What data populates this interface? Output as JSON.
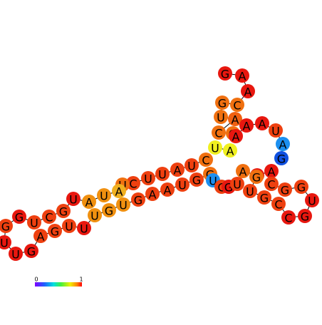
{
  "nodes": [
    {
      "label": "G",
      "color": "#e8170f"
    },
    {
      "label": "A",
      "color": "#e8170f"
    },
    {
      "label": "A",
      "color": "#e8170f"
    },
    {
      "label": "C",
      "color": "#f07010"
    },
    {
      "label": "G",
      "color": "#f07010"
    },
    {
      "label": "U",
      "color": "#f07010"
    },
    {
      "label": "A",
      "color": "#f06010"
    },
    {
      "label": "C",
      "color": "#f07010"
    },
    {
      "label": "G",
      "color": "#f07010"
    },
    {
      "label": "A",
      "color": "#e8170f"
    },
    {
      "label": "A",
      "color": "#e8170f"
    },
    {
      "label": "A",
      "color": "#e8170f"
    },
    {
      "label": "U",
      "color": "#ee4010"
    },
    {
      "label": "A",
      "color": "#1b8ff0"
    },
    {
      "label": "G",
      "color": "#1050e0"
    },
    {
      "label": "U",
      "color": "#f0f020"
    },
    {
      "label": "A",
      "color": "#f0f020"
    },
    {
      "label": "C",
      "color": "#f07010"
    },
    {
      "label": "U",
      "color": "#ee4010"
    },
    {
      "label": "A",
      "color": "#ee4010"
    },
    {
      "label": "U",
      "color": "#ee4010"
    },
    {
      "label": "U",
      "color": "#ee4010"
    },
    {
      "label": "C",
      "color": "#ee4010"
    },
    {
      "label": "U",
      "color": "#f07010"
    },
    {
      "label": "A",
      "color": "#f0b020"
    },
    {
      "label": "U",
      "color": "#f09010"
    },
    {
      "label": "A",
      "color": "#f09010"
    },
    {
      "label": "U",
      "color": "#e8170f"
    },
    {
      "label": "G",
      "color": "#ee4010"
    },
    {
      "label": "C",
      "color": "#ee4010"
    },
    {
      "label": "U",
      "color": "#ee4010"
    },
    {
      "label": "G",
      "color": "#e8170f"
    },
    {
      "label": "G",
      "color": "#ee4010"
    },
    {
      "label": "U",
      "color": "#e8170f"
    },
    {
      "label": "U",
      "color": "#e8170f"
    },
    {
      "label": "G",
      "color": "#e8170f"
    },
    {
      "label": "A",
      "color": "#ee4010"
    },
    {
      "label": "G",
      "color": "#ee4010"
    },
    {
      "label": "U",
      "color": "#ee4010"
    },
    {
      "label": "U",
      "color": "#e8170f"
    },
    {
      "label": "U",
      "color": "#f09010"
    },
    {
      "label": "G",
      "color": "#f09010"
    },
    {
      "label": "U",
      "color": "#f09010"
    },
    {
      "label": "G",
      "color": "#ee4010"
    },
    {
      "label": "A",
      "color": "#ee4010"
    },
    {
      "label": "A",
      "color": "#ee4010"
    },
    {
      "label": "U",
      "color": "#ee4010"
    },
    {
      "label": "G",
      "color": "#ee4010"
    },
    {
      "label": "G",
      "color": "#f07010"
    },
    {
      "label": "U",
      "color": "#1b8ff0"
    },
    {
      "label": "C",
      "color": "#ee4010"
    },
    {
      "label": "G",
      "color": "#e8170f"
    },
    {
      "label": "U",
      "color": "#ee4010"
    },
    {
      "label": "A",
      "color": "#f07010"
    },
    {
      "label": "A",
      "color": "#e8170f"
    },
    {
      "label": "A",
      "color": "#e8170f"
    },
    {
      "label": "C",
      "color": "#ee4010"
    },
    {
      "label": "G",
      "color": "#ee4010"
    },
    {
      "label": "G",
      "color": "#ee4010"
    },
    {
      "label": "U",
      "color": "#e8170f"
    },
    {
      "label": "G",
      "color": "#e8170f"
    },
    {
      "label": "C",
      "color": "#e8170f"
    },
    {
      "label": "C",
      "color": "#ee4010"
    },
    {
      "label": "G",
      "color": "#ee4010"
    },
    {
      "label": "U",
      "color": "#ee4010"
    },
    {
      "label": "G",
      "color": "#f07010"
    }
  ],
  "colorbar": {
    "min_label": "0",
    "max_label": "1"
  }
}
